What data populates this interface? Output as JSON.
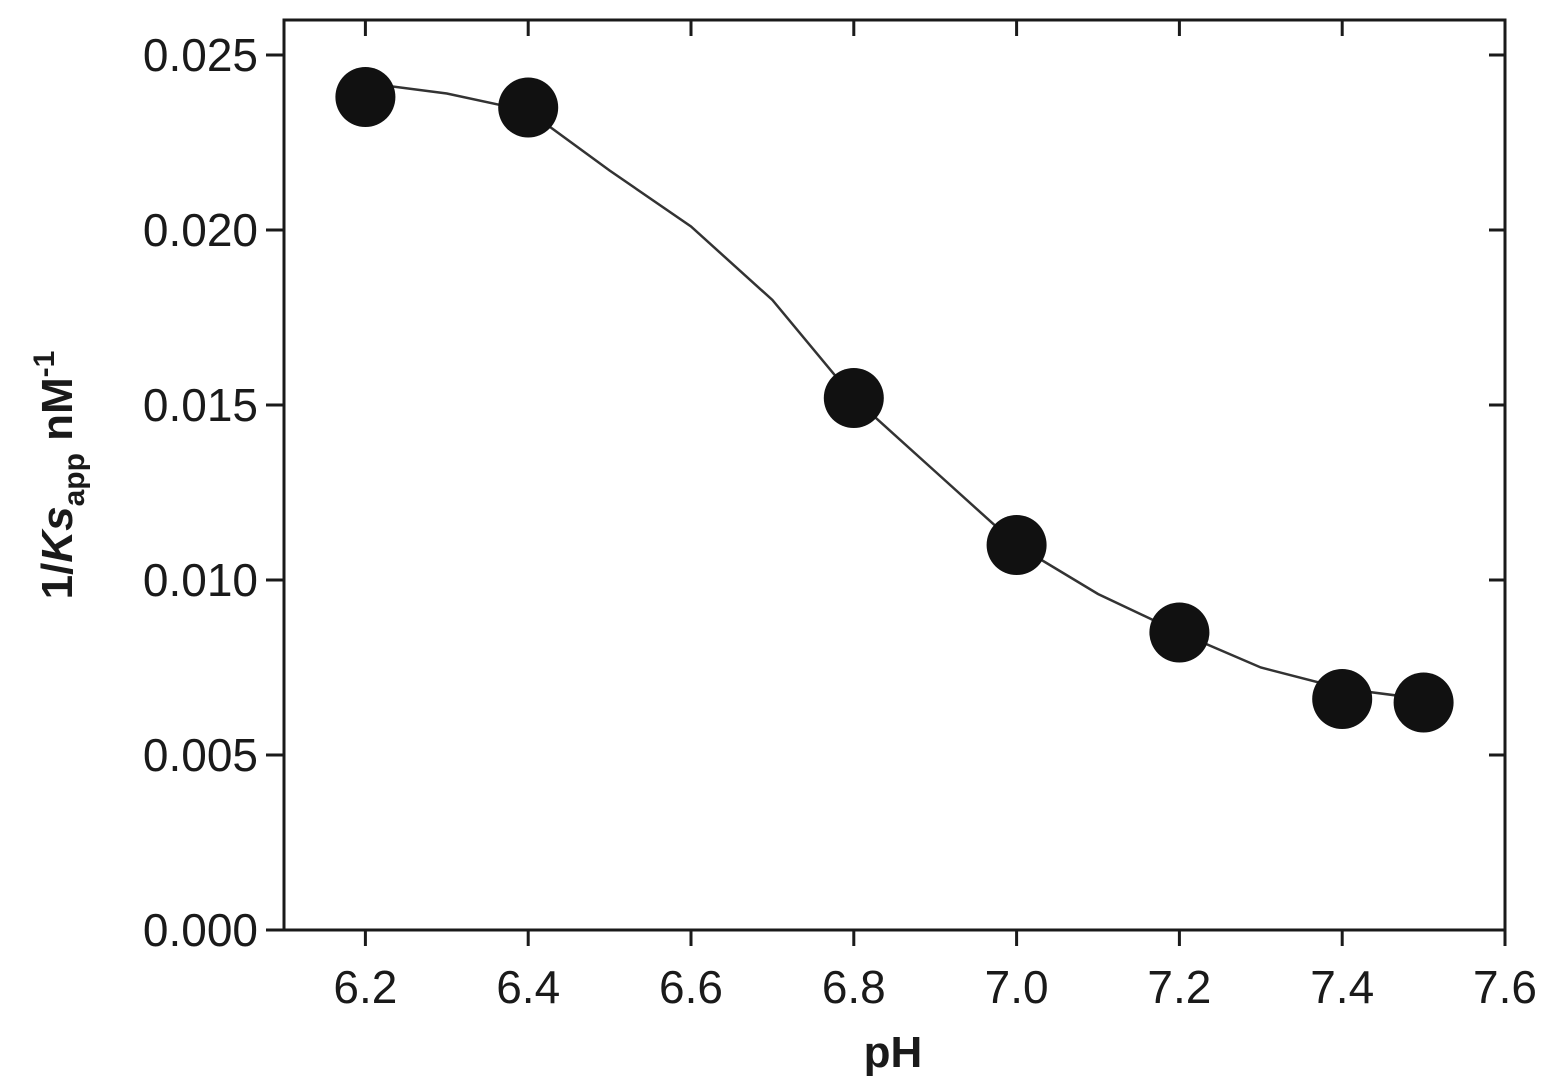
{
  "chart_data": {
    "type": "scatter",
    "xlabel": "pH",
    "ylabel": {
      "prefix": "1/",
      "italic": "Ks",
      "sub": "app",
      "unit": " nM",
      "sup": "-1"
    },
    "xlim": [
      6.1,
      7.6
    ],
    "ylim": [
      0,
      0.026
    ],
    "xticks": [
      6.2,
      6.4,
      6.6,
      6.8,
      {
        "value": 7,
        "label": "7.0"
      },
      7.2,
      7.4,
      7.6
    ],
    "yticks": [
      {
        "value": 0,
        "label": "0.000"
      },
      {
        "value": 0.005,
        "label": "0.005"
      },
      {
        "value": 0.01,
        "label": "0.010"
      },
      {
        "value": 0.015,
        "label": "0.015"
      },
      {
        "value": 0.02,
        "label": "0.020"
      },
      {
        "value": 0.025,
        "label": "0.025"
      }
    ],
    "series": [
      {
        "kind": "points",
        "color": "#111111",
        "x": [
          6.2,
          6.4,
          6.8,
          7.0,
          7.2,
          7.4,
          7.5
        ],
        "values": [
          0.0238,
          0.0235,
          0.0152,
          0.011,
          0.0085,
          0.0066,
          0.0065
        ]
      },
      {
        "kind": "fit",
        "color": "#333333",
        "x": [
          6.2,
          6.3,
          6.4,
          6.5,
          6.6,
          6.7,
          6.8,
          6.9,
          7.0,
          7.1,
          7.2,
          7.3,
          7.4,
          7.5
        ],
        "values": [
          0.0242,
          0.0239,
          0.0234,
          0.0217,
          0.0201,
          0.018,
          0.0152,
          0.0131,
          0.011,
          0.0096,
          0.0085,
          0.0075,
          0.0069,
          0.0066
        ]
      }
    ]
  }
}
